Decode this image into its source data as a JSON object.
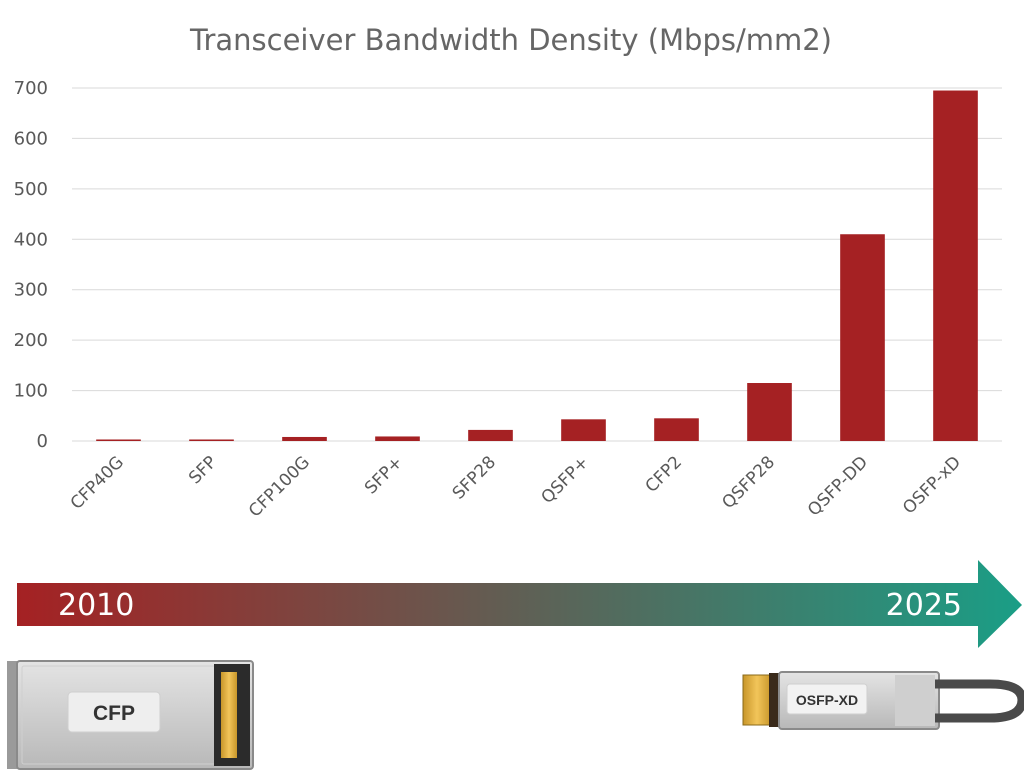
{
  "chart_data": {
    "type": "bar",
    "title": "Transceiver Bandwidth Density (Mbps/mm2)",
    "categories": [
      "CFP40G",
      "SFP",
      "CFP100G",
      "SFP+",
      "SFP28",
      "QSFP+",
      "CFP2",
      "QSFP28",
      "QSFP-DD",
      "OSFP-xD"
    ],
    "values": [
      3,
      3,
      8,
      9,
      22,
      43,
      45,
      115,
      410,
      695
    ],
    "ylim": [
      0,
      700
    ],
    "yticks": [
      0,
      100,
      200,
      300,
      400,
      500,
      600,
      700
    ],
    "grid": true,
    "bar_color": "#A52123"
  },
  "timeline": {
    "start_year": "2010",
    "end_year": "2025",
    "start_color": "#A52123",
    "end_color": "#1A9E86"
  },
  "modules": {
    "left_label": "CFP",
    "right_label": "OSFP-XD"
  }
}
